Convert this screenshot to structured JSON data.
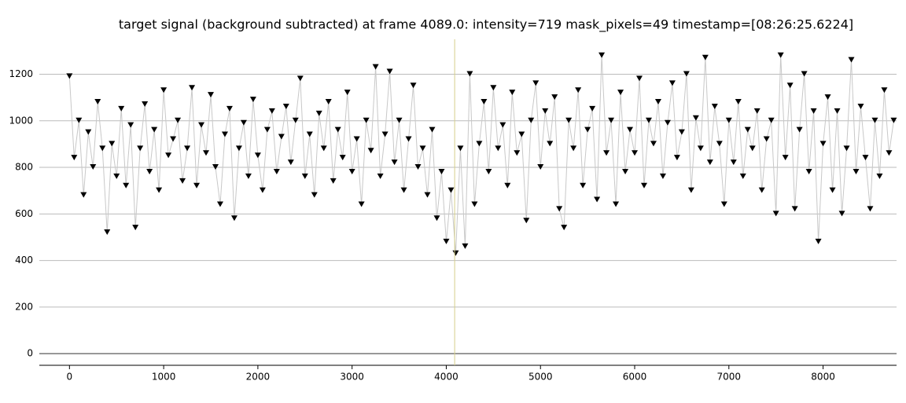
{
  "chart_data": {
    "type": "scatter",
    "title": "target signal (background subtracted) at frame 4089.0: intensity=719 mask_pixels=49 timestamp=[08:26:25.6224]",
    "x": [
      0,
      50,
      100,
      150,
      200,
      250,
      300,
      350,
      400,
      450,
      500,
      550,
      600,
      650,
      700,
      750,
      800,
      850,
      900,
      950,
      1000,
      1050,
      1100,
      1150,
      1200,
      1250,
      1300,
      1350,
      1400,
      1450,
      1500,
      1550,
      1600,
      1650,
      1700,
      1750,
      1800,
      1850,
      1900,
      1950,
      2000,
      2050,
      2100,
      2150,
      2200,
      2250,
      2300,
      2350,
      2400,
      2450,
      2500,
      2550,
      2600,
      2650,
      2700,
      2750,
      2800,
      2850,
      2900,
      2950,
      3000,
      3050,
      3100,
      3150,
      3200,
      3250,
      3300,
      3350,
      3400,
      3450,
      3500,
      3550,
      3600,
      3650,
      3700,
      3750,
      3800,
      3850,
      3900,
      3950,
      4000,
      4050,
      4100,
      4150,
      4200,
      4250,
      4300,
      4350,
      4400,
      4450,
      4500,
      4550,
      4600,
      4650,
      4700,
      4750,
      4800,
      4850,
      4900,
      4950,
      5000,
      5050,
      5100,
      5150,
      5200,
      5250,
      5300,
      5350,
      5400,
      5450,
      5500,
      5550,
      5600,
      5650,
      5700,
      5750,
      5800,
      5850,
      5900,
      5950,
      6000,
      6050,
      6100,
      6150,
      6200,
      6250,
      6300,
      6350,
      6400,
      6450,
      6500,
      6550,
      6600,
      6650,
      6700,
      6750,
      6800,
      6850,
      6900,
      6950,
      7000,
      7050,
      7100,
      7150,
      7200,
      7250,
      7300,
      7350,
      7400,
      7450,
      7500,
      7550,
      7600,
      7650,
      7700,
      7750,
      7800,
      7850,
      7900,
      7950,
      8000,
      8050,
      8100,
      8150,
      8200,
      8250,
      8300,
      8350,
      8400,
      8450,
      8500,
      8550,
      8600,
      8650,
      8700,
      8750
    ],
    "series": [
      {
        "color": "#000000",
        "values": [
          1190,
          840,
          1000,
          680,
          950,
          800,
          1080,
          880,
          520,
          900,
          760,
          1050,
          720,
          980,
          540,
          880,
          1070,
          780,
          960,
          700,
          1130,
          850,
          920,
          1000,
          740,
          880,
          1140,
          720,
          980,
          860,
          1110,
          800,
          640,
          940,
          1050,
          580,
          880,
          990,
          760,
          1090,
          850,
          700,
          960,
          1040,
          780,
          930,
          1060,
          820,
          1000,
          1180,
          760,
          940,
          680,
          1030,
          880,
          1080,
          740,
          960,
          840,
          1120,
          780,
          920,
          640,
          1000,
          870,
          1230,
          760,
          940,
          1210,
          820,
          1000,
          700,
          920,
          1150,
          800,
          880,
          680,
          960,
          580,
          780,
          480,
          700,
          430,
          880,
          460,
          1200,
          640,
          900,
          1080,
          780,
          1140,
          880,
          980,
          720,
          1120,
          860,
          940,
          570,
          1000,
          1160,
          800,
          1040,
          900,
          1100,
          620,
          540,
          1000,
          880,
          1130,
          720,
          960,
          1050,
          660,
          1280,
          860,
          1000,
          640,
          1120,
          780,
          960,
          860,
          1180,
          720,
          1000,
          900,
          1080,
          760,
          990,
          1160,
          840,
          950,
          1200,
          700,
          1010,
          880,
          1270,
          820,
          1060,
          900,
          640,
          1000,
          820,
          1080,
          760,
          960,
          880,
          1040,
          700,
          920,
          1000,
          600,
          1280,
          840,
          1150,
          620,
          960,
          1200,
          780,
          1040,
          480,
          900,
          1100,
          700,
          1040,
          600,
          880,
          1260,
          780,
          1060,
          840,
          620,
          1000,
          760,
          1130,
          860,
          1000
        ]
      }
    ],
    "line_color": "#c8c8c8",
    "cursor_x": 4089,
    "cursor_color": "#d6d08a",
    "xlim": [
      -320,
      8780
    ],
    "ylim": [
      -50,
      1350
    ],
    "xticks": [
      0,
      1000,
      2000,
      3000,
      4000,
      5000,
      6000,
      7000,
      8000
    ],
    "yticks": [
      0,
      200,
      400,
      600,
      800,
      1000,
      1200
    ],
    "grid": true
  }
}
